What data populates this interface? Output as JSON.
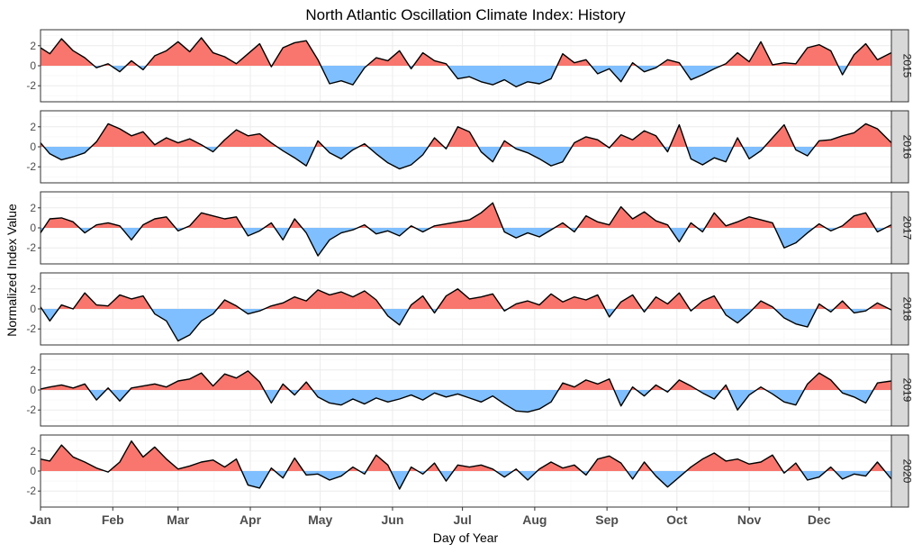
{
  "chart_data": {
    "type": "area",
    "title": "North Atlantic Oscillation Climate Index: History",
    "xlabel": "Day of Year",
    "ylabel": "Normalized Index Value",
    "xlim": [
      1,
      366
    ],
    "ylim": [
      -3.6,
      3.6
    ],
    "y_ticks": [
      -2,
      0,
      2
    ],
    "month_ticks": [
      {
        "label": "Jan",
        "day": 1
      },
      {
        "label": "Feb",
        "day": 32
      },
      {
        "label": "Mar",
        "day": 60
      },
      {
        "label": "Apr",
        "day": 91
      },
      {
        "label": "May",
        "day": 121
      },
      {
        "label": "Jun",
        "day": 152
      },
      {
        "label": "Jul",
        "day": 182
      },
      {
        "label": "Aug",
        "day": 213
      },
      {
        "label": "Sep",
        "day": 244
      },
      {
        "label": "Oct",
        "day": 274
      },
      {
        "label": "Nov",
        "day": 305
      },
      {
        "label": "Dec",
        "day": 335
      }
    ],
    "grid": true,
    "positive_color": "#F8766D",
    "negative_color": "#7FBFFF",
    "line_color": "#000000",
    "panel_background": "#FFFFFF",
    "grid_color": "#EBEBEB",
    "strip_fill": "#D9D9D9",
    "panels": [
      {
        "year": "2015",
        "x": [
          1,
          5,
          10,
          15,
          20,
          25,
          30,
          35,
          40,
          45,
          50,
          55,
          60,
          65,
          70,
          75,
          80,
          85,
          90,
          95,
          100,
          105,
          110,
          115,
          120,
          125,
          130,
          135,
          140,
          145,
          150,
          155,
          160,
          165,
          170,
          175,
          180,
          185,
          190,
          195,
          200,
          205,
          210,
          215,
          220,
          225,
          230,
          235,
          240,
          245,
          250,
          255,
          260,
          265,
          270,
          275,
          280,
          285,
          290,
          295,
          300,
          305,
          310,
          315,
          320,
          325,
          330,
          335,
          340,
          345,
          350,
          355,
          360,
          366
        ],
        "y": [
          1.8,
          1.2,
          2.7,
          1.5,
          0.8,
          -0.2,
          0.2,
          -0.6,
          0.5,
          -0.4,
          1.0,
          1.5,
          2.4,
          1.4,
          2.8,
          1.3,
          0.9,
          0.2,
          1.2,
          2.2,
          -0.1,
          1.8,
          2.3,
          2.5,
          0.6,
          -1.8,
          -1.5,
          -1.9,
          -0.2,
          0.8,
          0.5,
          1.5,
          -0.3,
          1.3,
          0.5,
          0.2,
          -1.3,
          -1.1,
          -1.6,
          -1.9,
          -1.4,
          -2.1,
          -1.6,
          -1.8,
          -1.3,
          1.2,
          0.3,
          0.6,
          -0.8,
          -0.3,
          -1.6,
          0.3,
          -0.6,
          -0.2,
          0.6,
          0.3,
          -1.4,
          -0.9,
          -0.3,
          0.2,
          1.3,
          0.4,
          2.4,
          0.1,
          0.3,
          0.2,
          1.8,
          2.1,
          1.5,
          -0.9,
          1.1,
          2.2,
          0.6,
          1.3
        ]
      },
      {
        "year": "2016",
        "x": [
          1,
          5,
          10,
          15,
          20,
          25,
          30,
          35,
          40,
          45,
          50,
          55,
          60,
          65,
          70,
          75,
          80,
          85,
          90,
          95,
          100,
          105,
          110,
          115,
          120,
          125,
          130,
          135,
          140,
          145,
          150,
          155,
          160,
          165,
          170,
          175,
          180,
          185,
          190,
          195,
          200,
          205,
          210,
          215,
          220,
          225,
          230,
          235,
          240,
          245,
          250,
          255,
          260,
          265,
          270,
          275,
          280,
          285,
          290,
          295,
          300,
          305,
          310,
          315,
          320,
          325,
          330,
          335,
          340,
          345,
          350,
          355,
          360,
          366
        ],
        "y": [
          0.4,
          -0.7,
          -1.3,
          -1.0,
          -0.6,
          0.5,
          2.3,
          1.8,
          1.1,
          1.5,
          0.2,
          0.9,
          0.4,
          0.8,
          0.2,
          -0.5,
          0.7,
          1.7,
          1.1,
          1.3,
          0.4,
          -0.4,
          -1.1,
          -1.9,
          0.6,
          -0.6,
          -1.2,
          -0.3,
          0.3,
          -0.7,
          -1.6,
          -2.2,
          -1.8,
          -0.8,
          0.9,
          -0.2,
          2.0,
          1.5,
          -0.5,
          -1.5,
          0.6,
          -0.2,
          -0.6,
          -1.2,
          -1.9,
          -1.5,
          0.4,
          1.0,
          0.7,
          -0.1,
          1.2,
          0.7,
          1.6,
          1.1,
          -0.5,
          2.2,
          -1.2,
          -1.8,
          -1.1,
          -1.5,
          0.9,
          -1.2,
          -0.4,
          0.9,
          2.2,
          -0.3,
          -0.9,
          0.6,
          0.7,
          1.1,
          1.4,
          2.3,
          1.8,
          0.4
        ]
      },
      {
        "year": "2017",
        "x": [
          1,
          5,
          10,
          15,
          20,
          25,
          30,
          35,
          40,
          45,
          50,
          55,
          60,
          65,
          70,
          75,
          80,
          85,
          90,
          95,
          100,
          105,
          110,
          115,
          120,
          125,
          130,
          135,
          140,
          145,
          150,
          155,
          160,
          165,
          170,
          175,
          180,
          185,
          190,
          195,
          200,
          205,
          210,
          215,
          220,
          225,
          230,
          235,
          240,
          245,
          250,
          255,
          260,
          265,
          270,
          275,
          280,
          285,
          290,
          295,
          300,
          305,
          310,
          315,
          320,
          325,
          330,
          335,
          340,
          345,
          350,
          355,
          360,
          366
        ],
        "y": [
          -0.5,
          0.9,
          1.0,
          0.6,
          -0.5,
          0.3,
          0.5,
          0.2,
          -1.2,
          0.3,
          0.9,
          1.1,
          -0.3,
          0.2,
          1.5,
          1.2,
          0.9,
          1.1,
          -0.8,
          -0.3,
          0.5,
          -1.2,
          0.9,
          -0.5,
          -2.8,
          -1.2,
          -0.5,
          -0.2,
          0.3,
          -0.6,
          -0.3,
          -0.8,
          0.2,
          -0.4,
          0.2,
          0.4,
          0.6,
          0.8,
          1.5,
          2.5,
          -0.4,
          -1.0,
          -0.5,
          -0.9,
          -0.2,
          0.5,
          -0.4,
          1.2,
          0.6,
          0.3,
          2.1,
          0.9,
          1.6,
          0.7,
          0.3,
          -1.4,
          0.5,
          -0.4,
          1.5,
          0.2,
          0.6,
          1.1,
          0.8,
          0.5,
          -2.0,
          -1.5,
          -0.5,
          0.4,
          -0.3,
          0.2,
          1.2,
          1.5,
          -0.4,
          0.3
        ]
      },
      {
        "year": "2018",
        "x": [
          1,
          5,
          10,
          15,
          20,
          25,
          30,
          35,
          40,
          45,
          50,
          55,
          60,
          65,
          70,
          75,
          80,
          85,
          90,
          95,
          100,
          105,
          110,
          115,
          120,
          125,
          130,
          135,
          140,
          145,
          150,
          155,
          160,
          165,
          170,
          175,
          180,
          185,
          190,
          195,
          200,
          205,
          210,
          215,
          220,
          225,
          230,
          235,
          240,
          245,
          250,
          255,
          260,
          265,
          270,
          275,
          280,
          285,
          290,
          295,
          300,
          305,
          310,
          315,
          320,
          325,
          330,
          335,
          340,
          345,
          350,
          355,
          360,
          366
        ],
        "y": [
          0.2,
          -1.2,
          0.4,
          0.0,
          1.6,
          0.4,
          0.3,
          1.4,
          1.0,
          1.3,
          -0.5,
          -1.2,
          -3.2,
          -2.6,
          -1.2,
          -0.5,
          0.9,
          0.3,
          -0.5,
          -0.2,
          0.3,
          0.6,
          1.2,
          0.8,
          1.9,
          1.4,
          1.7,
          1.2,
          1.8,
          0.9,
          -0.7,
          -1.6,
          0.4,
          1.3,
          -0.4,
          1.3,
          2.0,
          1.0,
          1.2,
          1.5,
          -0.2,
          0.5,
          0.8,
          0.4,
          1.5,
          0.7,
          1.2,
          0.9,
          1.4,
          -0.8,
          0.7,
          1.4,
          -0.3,
          1.2,
          0.5,
          1.6,
          -0.2,
          0.8,
          1.3,
          -0.6,
          -1.4,
          -0.4,
          0.8,
          0.2,
          -0.9,
          -1.5,
          -1.8,
          0.5,
          -0.3,
          0.8,
          -0.4,
          -0.2,
          0.6,
          -0.1
        ]
      },
      {
        "year": "2019",
        "x": [
          1,
          5,
          10,
          15,
          20,
          25,
          30,
          35,
          40,
          45,
          50,
          55,
          60,
          65,
          70,
          75,
          80,
          85,
          90,
          95,
          100,
          105,
          110,
          115,
          120,
          125,
          130,
          135,
          140,
          145,
          150,
          155,
          160,
          165,
          170,
          175,
          180,
          185,
          190,
          195,
          200,
          205,
          210,
          215,
          220,
          225,
          230,
          235,
          240,
          245,
          250,
          255,
          260,
          265,
          270,
          275,
          280,
          285,
          290,
          295,
          300,
          305,
          310,
          315,
          320,
          325,
          330,
          335,
          340,
          345,
          350,
          355,
          360,
          366
        ],
        "y": [
          0.1,
          0.3,
          0.5,
          0.2,
          0.6,
          -1.0,
          0.2,
          -1.1,
          0.2,
          0.4,
          0.6,
          0.3,
          0.9,
          1.1,
          1.7,
          0.4,
          1.6,
          1.2,
          1.9,
          0.8,
          -1.3,
          0.6,
          -0.5,
          0.8,
          -0.7,
          -1.3,
          -1.5,
          -0.9,
          -1.4,
          -0.8,
          -1.2,
          -0.9,
          -0.5,
          -1.0,
          -0.3,
          -0.7,
          -0.4,
          -0.8,
          -1.2,
          -0.6,
          -1.4,
          -2.1,
          -2.2,
          -1.9,
          -1.2,
          0.7,
          0.3,
          1.0,
          0.6,
          1.1,
          -1.6,
          0.3,
          -0.6,
          0.5,
          -0.2,
          1.0,
          0.4,
          -0.3,
          -0.9,
          0.5,
          -2.0,
          -0.5,
          0.3,
          -0.4,
          -1.2,
          -1.5,
          0.6,
          1.7,
          1.0,
          -0.3,
          -0.7,
          -1.3,
          0.7,
          0.9
        ]
      },
      {
        "year": "2020",
        "x": [
          1,
          5,
          10,
          15,
          20,
          25,
          30,
          35,
          40,
          45,
          50,
          55,
          60,
          65,
          70,
          75,
          80,
          85,
          90,
          95,
          100,
          105,
          110,
          115,
          120,
          125,
          130,
          135,
          140,
          145,
          150,
          155,
          160,
          165,
          170,
          175,
          180,
          185,
          190,
          195,
          200,
          205,
          210,
          215,
          220,
          225,
          230,
          235,
          240,
          245,
          250,
          255,
          260,
          265,
          270,
          275,
          280,
          285,
          290,
          295,
          300,
          305,
          310,
          315,
          320,
          325,
          330,
          335,
          340,
          345,
          350,
          355,
          360,
          366
        ],
        "y": [
          1.2,
          1.0,
          2.6,
          1.4,
          0.9,
          0.3,
          -0.1,
          0.9,
          3.0,
          1.4,
          2.4,
          1.2,
          0.2,
          0.5,
          0.9,
          1.1,
          0.4,
          1.2,
          -1.4,
          -1.7,
          0.3,
          -0.7,
          1.3,
          -0.4,
          -0.3,
          -0.9,
          -0.5,
          0.4,
          -0.3,
          1.6,
          0.6,
          -1.8,
          0.4,
          -0.3,
          0.8,
          -1.0,
          0.6,
          0.4,
          0.6,
          0.2,
          -0.6,
          0.2,
          -0.9,
          0.2,
          0.9,
          0.3,
          0.6,
          -0.4,
          1.2,
          1.5,
          0.8,
          -0.8,
          0.9,
          -0.5,
          -1.6,
          -0.6,
          0.4,
          1.2,
          1.8,
          1.0,
          1.2,
          0.7,
          0.9,
          1.6,
          -0.2,
          0.8,
          -0.9,
          -0.6,
          0.4,
          -0.8,
          -0.3,
          -0.5,
          0.9,
          -0.8
        ]
      }
    ]
  }
}
